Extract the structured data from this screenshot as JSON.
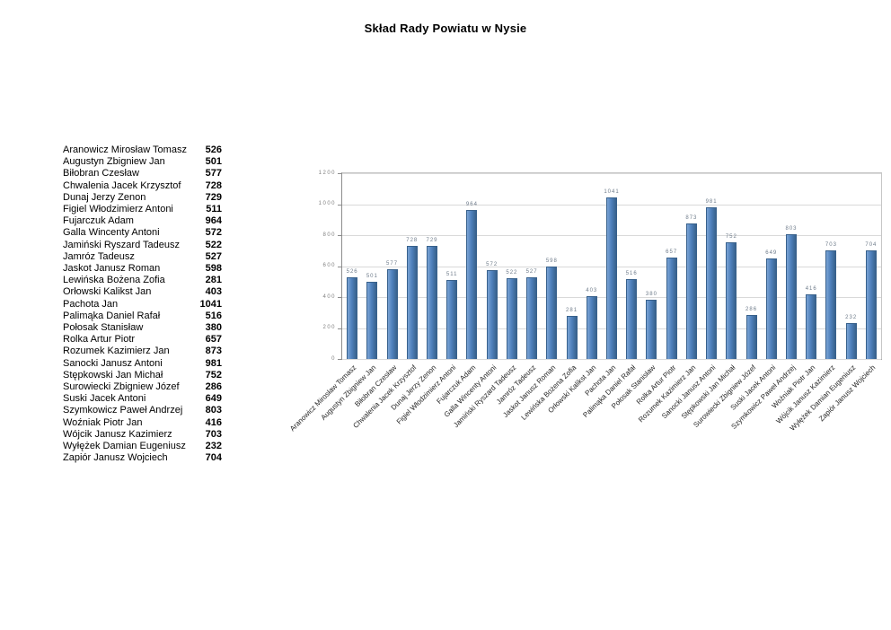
{
  "page": {
    "title": "Skład Rady Powiatu w Nysie"
  },
  "colors": {
    "bar": "#4f81bd",
    "bar_border": "#38618c",
    "bar_highlight": "#7aa3d4",
    "gridline": "#d9d9d9",
    "plot_border": "#c6c6c6",
    "axis_line": "#8c8c8c",
    "value_label": "#6e7b8a",
    "tick_label": "#808080",
    "category_label": "#262626"
  },
  "chart_data": {
    "type": "bar",
    "title": "Skład Rady Powiatu w Nysie",
    "categories": [
      "Aranowicz Mirosław Tomasz",
      "Augustyn Zbigniew Jan",
      "Biłobran Czesław",
      "Chwalenia Jacek Krzysztof",
      "Dunaj Jerzy Zenon",
      "Figiel Włodzimierz Antoni",
      "Fujarczuk Adam",
      "Galla Wincenty Antoni",
      "Jamiński Ryszard Tadeusz",
      "Jamróz Tadeusz",
      "Jaskot Janusz Roman",
      "Lewińska Bożena Zofia",
      "Orłowski Kalikst Jan",
      "Pachota Jan",
      "Palimąka Daniel Rafał",
      "Połosak Stanisław",
      "Rolka Artur Piotr",
      "Rozumek Kazimierz Jan",
      "Sanocki Janusz Antoni",
      "Stępkowski Jan Michał",
      "Surowiecki Zbigniew Józef",
      "Suski Jacek Antoni",
      "Szymkowicz Paweł Andrzej",
      "Woźniak Piotr Jan",
      "Wójcik Janusz Kazimierz",
      "Wyłężek Damian Eugeniusz",
      "Zapiór Janusz Wojciech"
    ],
    "values": [
      526,
      501,
      577,
      728,
      729,
      511,
      964,
      572,
      522,
      527,
      598,
      281,
      403,
      1041,
      516,
      380,
      657,
      873,
      981,
      752,
      286,
      649,
      803,
      416,
      703,
      232,
      704
    ],
    "xlabel": "",
    "ylabel": "",
    "ylim": [
      0,
      1200
    ],
    "ytick_interval": 200,
    "grid": true,
    "legend": "none",
    "value_labels": true,
    "category_label_rotation_deg": 45
  }
}
